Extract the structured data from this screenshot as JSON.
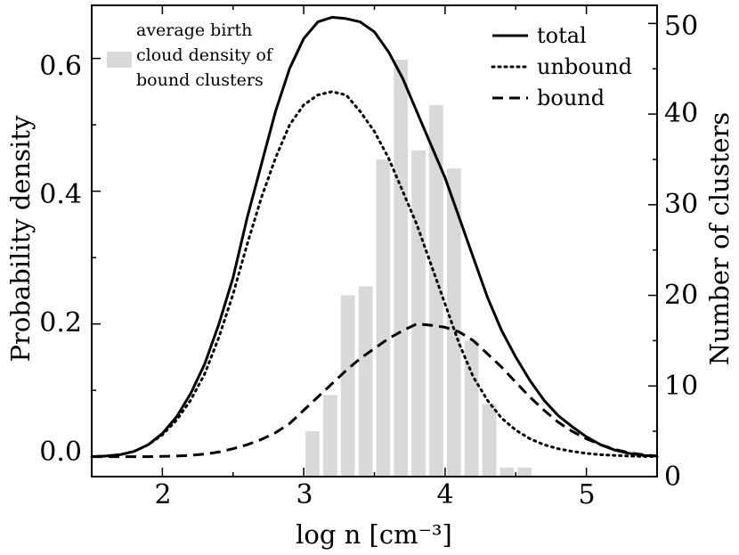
{
  "chart_data": {
    "type": "line",
    "xlabel": "log n [cm⁻³]",
    "ylabel": "Probability density",
    "y2label": "Number of clusters",
    "xlim": [
      1.5,
      5.5
    ],
    "ylim": [
      -0.03,
      0.68
    ],
    "y2lim": [
      0,
      52
    ],
    "xticks": [
      2,
      3,
      4,
      5
    ],
    "yticks": [
      0.0,
      0.2,
      0.4,
      0.6
    ],
    "y2ticks": [
      0,
      10,
      20,
      30,
      40,
      50
    ],
    "xtick_labels": [
      "2",
      "3",
      "4",
      "5"
    ],
    "ytick_labels": [
      "0.0",
      "0.2",
      "0.4",
      "0.6"
    ],
    "y2tick_labels": [
      "0",
      "10",
      "20",
      "30",
      "40",
      "50"
    ],
    "series": [
      {
        "name": "total",
        "style": "solid",
        "x": [
          1.5,
          1.6,
          1.7,
          1.8,
          1.9,
          2.0,
          2.1,
          2.2,
          2.3,
          2.4,
          2.5,
          2.6,
          2.7,
          2.8,
          2.9,
          3.0,
          3.1,
          3.2,
          3.3,
          3.4,
          3.5,
          3.6,
          3.7,
          3.8,
          3.9,
          4.0,
          4.1,
          4.2,
          4.3,
          4.4,
          4.5,
          4.6,
          4.7,
          4.8,
          4.9,
          5.0,
          5.1,
          5.2,
          5.3,
          5.4,
          5.5
        ],
        "values": [
          0.0,
          0.001,
          0.003,
          0.008,
          0.018,
          0.035,
          0.06,
          0.095,
          0.14,
          0.2,
          0.27,
          0.36,
          0.44,
          0.52,
          0.585,
          0.63,
          0.655,
          0.662,
          0.66,
          0.655,
          0.64,
          0.61,
          0.57,
          0.52,
          0.47,
          0.42,
          0.36,
          0.3,
          0.24,
          0.19,
          0.15,
          0.115,
          0.085,
          0.062,
          0.045,
          0.03,
          0.018,
          0.01,
          0.005,
          0.002,
          0.001
        ]
      },
      {
        "name": "unbound",
        "style": "dotted",
        "x": [
          1.5,
          1.6,
          1.7,
          1.8,
          1.9,
          2.0,
          2.1,
          2.2,
          2.3,
          2.4,
          2.5,
          2.6,
          2.7,
          2.8,
          2.9,
          3.0,
          3.1,
          3.2,
          3.3,
          3.4,
          3.5,
          3.6,
          3.7,
          3.8,
          3.9,
          4.0,
          4.1,
          4.2,
          4.3,
          4.4,
          4.5,
          4.6,
          4.7,
          4.8,
          4.9,
          5.0,
          5.1,
          5.2,
          5.3,
          5.4,
          5.5
        ],
        "values": [
          0.0,
          0.001,
          0.003,
          0.008,
          0.018,
          0.033,
          0.055,
          0.085,
          0.125,
          0.18,
          0.245,
          0.32,
          0.39,
          0.45,
          0.5,
          0.53,
          0.545,
          0.55,
          0.545,
          0.52,
          0.49,
          0.45,
          0.4,
          0.35,
          0.29,
          0.23,
          0.17,
          0.12,
          0.085,
          0.058,
          0.04,
          0.027,
          0.018,
          0.012,
          0.008,
          0.005,
          0.003,
          0.002,
          0.001,
          0.0005,
          0.0002
        ]
      },
      {
        "name": "bound",
        "style": "dashed",
        "x": [
          1.5,
          1.6,
          1.7,
          1.8,
          1.9,
          2.0,
          2.1,
          2.2,
          2.3,
          2.4,
          2.5,
          2.6,
          2.7,
          2.8,
          2.9,
          3.0,
          3.1,
          3.2,
          3.3,
          3.4,
          3.5,
          3.6,
          3.7,
          3.8,
          3.9,
          4.0,
          4.1,
          4.2,
          4.3,
          4.4,
          4.5,
          4.6,
          4.7,
          4.8,
          4.9,
          5.0,
          5.1,
          5.2,
          5.3,
          5.4,
          5.5
        ],
        "values": [
          0.0,
          0.0,
          0.0,
          0.0,
          0.0,
          0.0005,
          0.001,
          0.002,
          0.004,
          0.007,
          0.012,
          0.018,
          0.026,
          0.036,
          0.05,
          0.07,
          0.09,
          0.11,
          0.13,
          0.148,
          0.163,
          0.178,
          0.19,
          0.2,
          0.198,
          0.195,
          0.188,
          0.175,
          0.155,
          0.135,
          0.112,
          0.09,
          0.07,
          0.052,
          0.038,
          0.027,
          0.018,
          0.011,
          0.006,
          0.003,
          0.001
        ]
      }
    ],
    "histogram": {
      "label": "average birth cloud density of bound clusters",
      "label_lines": [
        "average birth",
        "cloud density of",
        "bound clusters"
      ],
      "axis": "right",
      "bin_edges": [
        3.0,
        3.125,
        3.25,
        3.375,
        3.5,
        3.625,
        3.75,
        3.875,
        4.0,
        4.125,
        4.25,
        4.375,
        4.5,
        4.625,
        4.75
      ],
      "counts": [
        5,
        9,
        20,
        21,
        35,
        46,
        36,
        41,
        34,
        15,
        8,
        1,
        1,
        0
      ]
    },
    "legend": {
      "position": "top-right",
      "entries": [
        "total",
        "unbound",
        "bound"
      ]
    }
  }
}
